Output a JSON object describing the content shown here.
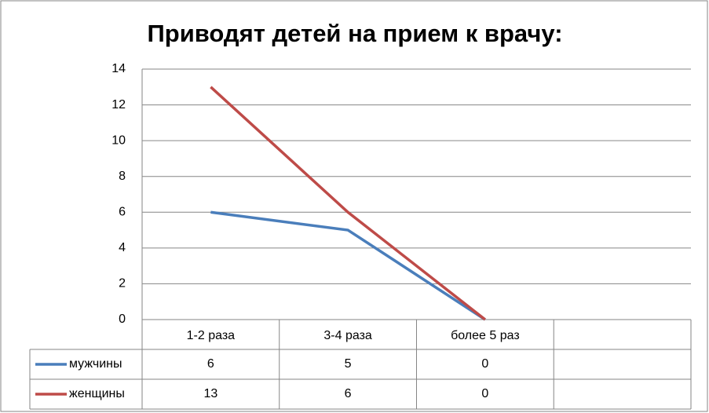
{
  "chart_data": {
    "type": "line",
    "title": "Приводят детей на прием к врачу:",
    "categories": [
      "1-2 раза",
      "3-4 раза",
      "более 5 раз",
      null
    ],
    "series": [
      {
        "name": "мужчины",
        "color": "#4a7ebb",
        "values": [
          6,
          5,
          0,
          null
        ]
      },
      {
        "name": "женщины",
        "color": "#be4b48",
        "values": [
          13,
          6,
          0,
          null
        ]
      }
    ],
    "ylim": [
      0,
      14
    ],
    "yticks": [
      0,
      2,
      4,
      6,
      8,
      10,
      12,
      14
    ],
    "grid": true
  }
}
